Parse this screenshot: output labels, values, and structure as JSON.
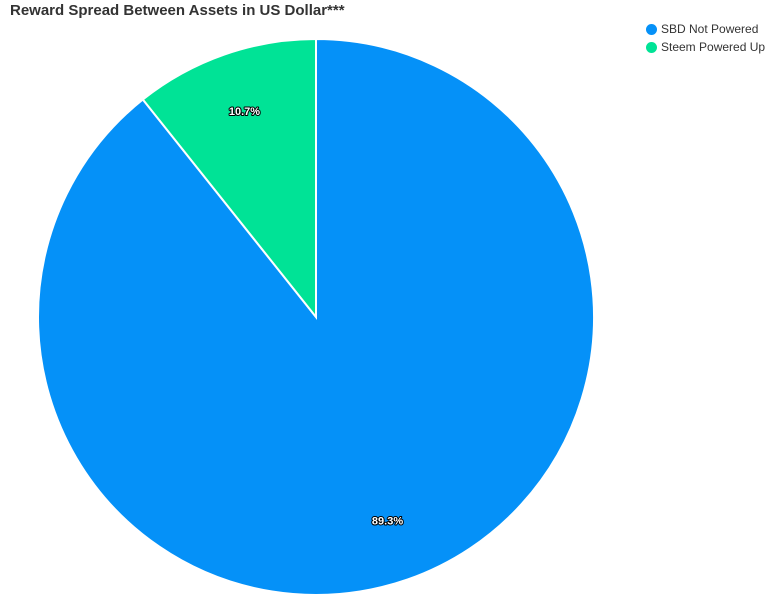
{
  "chart_data": {
    "type": "pie",
    "title": "Reward Spread Between Assets in US Dollar***",
    "legend_position": "top-right",
    "slices": [
      {
        "name": "SBD Not Powered",
        "value": 89.3,
        "label": "89.3%",
        "color": "#0591f8"
      },
      {
        "name": "Steem Powered Up",
        "value": 10.7,
        "label": "10.7%",
        "color": "#00e396"
      }
    ]
  }
}
